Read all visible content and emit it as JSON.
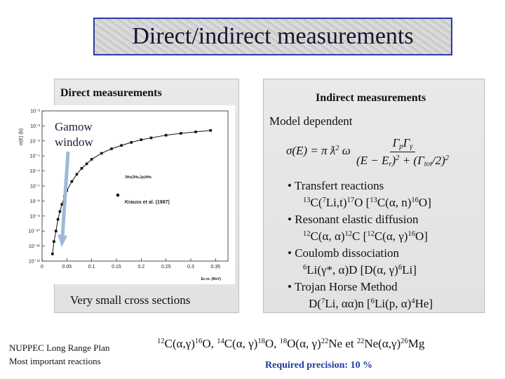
{
  "title": "Direct/indirect measurements",
  "direct": {
    "heading": "Direct measurements",
    "gamow": [
      "Gamow",
      "window"
    ],
    "caption": "Very small cross sections"
  },
  "chart_data": {
    "type": "scatter",
    "y_label": "σ(E) (b)",
    "x_label": [
      "E",
      {
        "t": "c.m.",
        "sub": true
      },
      " (MeV)"
    ],
    "annotation": [
      {
        "t": "3",
        "sup": true
      },
      "He(",
      {
        "t": "3",
        "sup": true
      },
      "He,2p)",
      {
        "t": "4",
        "sup": true
      },
      "He"
    ],
    "log_y": true,
    "xlim": [
      0,
      0.375
    ],
    "xticks": [
      0,
      0.05,
      0.1,
      0.15,
      0.2,
      0.25,
      0.3,
      0.35
    ],
    "ylim": [
      1e-12,
      0.01
    ],
    "yticks": [
      {
        "value": 1e-12,
        "label": "10⁻¹²"
      },
      {
        "value": 1e-11,
        "label": "10⁻¹¹"
      },
      {
        "value": 1e-10,
        "label": "10⁻¹⁰"
      },
      {
        "value": 1e-09,
        "label": "10⁻⁹"
      },
      {
        "value": 1e-08,
        "label": "10⁻⁸"
      },
      {
        "value": 1e-07,
        "label": "10⁻⁷"
      },
      {
        "value": 1e-06,
        "label": "10⁻⁶"
      },
      {
        "value": 1e-05,
        "label": "10⁻⁵"
      },
      {
        "value": 0.0001,
        "label": "10⁻⁴"
      },
      {
        "value": 0.001,
        "label": "10⁻³"
      },
      {
        "value": 0.01,
        "label": "10⁻²"
      }
    ],
    "x": [
      0.021,
      0.024,
      0.028,
      0.032,
      0.036,
      0.04,
      0.045,
      0.05,
      0.06,
      0.07,
      0.08,
      0.09,
      0.1,
      0.12,
      0.14,
      0.16,
      0.18,
      0.2,
      0.22,
      0.25,
      0.28,
      0.31,
      0.34
    ],
    "series": [
      {
        "name": "Krauss et al. (1987)",
        "color": "#111111",
        "values": [
          3e-12,
          2e-11,
          1e-10,
          6e-10,
          2e-09,
          6e-09,
          2e-08,
          5e-08,
          2e-07,
          6e-07,
          1.5e-06,
          3e-06,
          6e-06,
          1.5e-05,
          3e-05,
          5e-05,
          8e-05,
          0.00012,
          0.00016,
          0.00024,
          0.00032,
          0.0004,
          0.0005
        ]
      }
    ]
  },
  "indirect": {
    "heading": "Indirect measurements",
    "subheading": "Model dependent",
    "formula": {
      "lhs": [
        "σ(E) = π ƛ",
        {
          "t": "2",
          "sup": true
        },
        "  ω"
      ],
      "numerator": [
        "Γ",
        {
          "t": "p",
          "sub": true
        },
        "Γ",
        {
          "t": "γ",
          "sub": true
        }
      ],
      "denominator": [
        "(E − E",
        {
          "t": "r",
          "sub": true
        },
        ")",
        {
          "t": "2",
          "sup": true
        },
        " + (Γ",
        {
          "t": "tot",
          "sub": true
        },
        "/2)",
        {
          "t": "2",
          "sup": true
        }
      ]
    },
    "bullets": [
      {
        "head": "Transfert reactions",
        "line": [
          {
            "t": "13",
            "sup": true
          },
          "C(",
          {
            "t": "7",
            "sup": true
          },
          "Li,t)",
          {
            "t": "17",
            "sup": true
          },
          "O [",
          {
            "t": "13",
            "sup": true
          },
          "C(α, n)",
          {
            "t": "16",
            "sup": true
          },
          "O]"
        ]
      },
      {
        "head": "Resonant elastic diffusion",
        "line": [
          {
            "t": "12",
            "sup": true
          },
          "C(α, α)",
          {
            "t": "12",
            "sup": true
          },
          "C [",
          {
            "t": "12",
            "sup": true
          },
          "C(α, γ)",
          {
            "t": "16",
            "sup": true
          },
          "O]"
        ]
      },
      {
        "head": "Coulomb dissociation",
        "line": [
          {
            "t": "6",
            "sup": true
          },
          "Li(γ*, α)D [D(α, γ)",
          {
            "t": "6",
            "sup": true
          },
          "Li]"
        ]
      },
      {
        "head": "Trojan Horse Method",
        "line": [
          "D(",
          {
            "t": "7",
            "sup": true
          },
          "Li, αα)n [",
          {
            "t": "6",
            "sup": true
          },
          "Li(p, α)",
          {
            "t": "4",
            "sup": true
          },
          "He]"
        ]
      }
    ]
  },
  "footer": {
    "note": [
      "NUPPEC Long Range Plan",
      "Most important reactions"
    ],
    "reactions": [
      {
        "t": "12",
        "sup": true
      },
      "C(α,γ)",
      {
        "t": "16",
        "sup": true
      },
      "O, ",
      {
        "t": "14",
        "sup": true
      },
      "C(α, γ)",
      {
        "t": "18",
        "sup": true
      },
      "O, ",
      {
        "t": "18",
        "sup": true
      },
      "O(α, γ)",
      {
        "t": "22",
        "sup": true
      },
      "Ne et ",
      {
        "t": "22",
        "sup": true
      },
      "Ne(α,γ)",
      {
        "t": "26",
        "sup": true
      },
      "Mg"
    ],
    "precision": "Required precision: 10 %"
  }
}
